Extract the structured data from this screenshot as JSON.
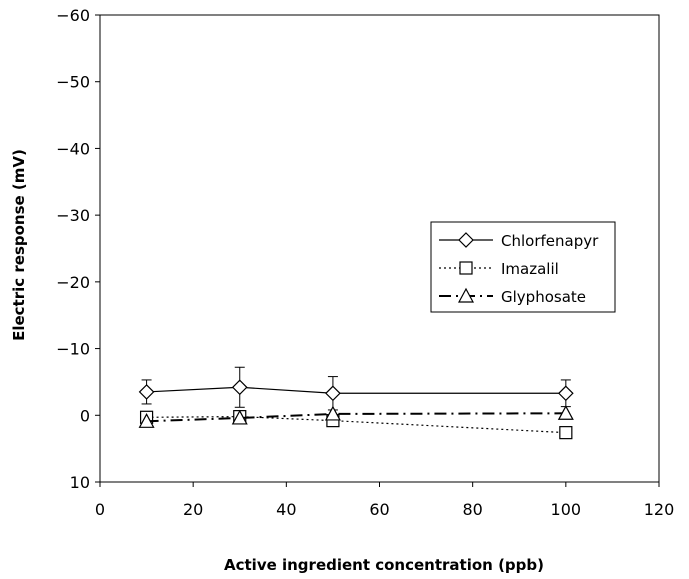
{
  "chart_data": {
    "type": "line",
    "xlabel": "Active ingredient concentration (ppb)",
    "ylabel": "Electric response (mV)",
    "xlim": [
      0,
      120
    ],
    "ylim": [
      10,
      -60
    ],
    "y_reversed": true,
    "xticks": [
      0,
      20,
      40,
      60,
      80,
      100,
      120
    ],
    "yticks": [
      -60,
      -50,
      -40,
      -30,
      -20,
      -10,
      0,
      10
    ],
    "xtick_labels": [
      "0",
      "20",
      "40",
      "60",
      "80",
      "100",
      "120"
    ],
    "ytick_labels": [
      "-60",
      "-50",
      "-40",
      "-30",
      "-20",
      "-10",
      "0",
      "10"
    ],
    "grid": false,
    "legend_position": "center-right",
    "series": [
      {
        "name": "Chlorfenapyr",
        "marker": "diamond",
        "line_style": "solid",
        "color": "#000000",
        "x": [
          10,
          30,
          50,
          100
        ],
        "y": [
          -3.5,
          -4.2,
          -3.3,
          -3.3
        ],
        "error": [
          1.8,
          3.0,
          2.5,
          2.0
        ]
      },
      {
        "name": "Imazalil",
        "marker": "square",
        "line_style": "dotted",
        "color": "#000000",
        "x": [
          10,
          30,
          50,
          100
        ],
        "y": [
          0.3,
          0.2,
          0.8,
          2.6
        ],
        "error": [
          0,
          0,
          0,
          0
        ]
      },
      {
        "name": "Glyphosate",
        "marker": "triangle",
        "line_style": "dashdot",
        "color": "#000000",
        "x": [
          10,
          30,
          50,
          100
        ],
        "y": [
          0.9,
          0.4,
          -0.2,
          -0.3
        ],
        "error": [
          0,
          0,
          0,
          0
        ]
      }
    ]
  }
}
